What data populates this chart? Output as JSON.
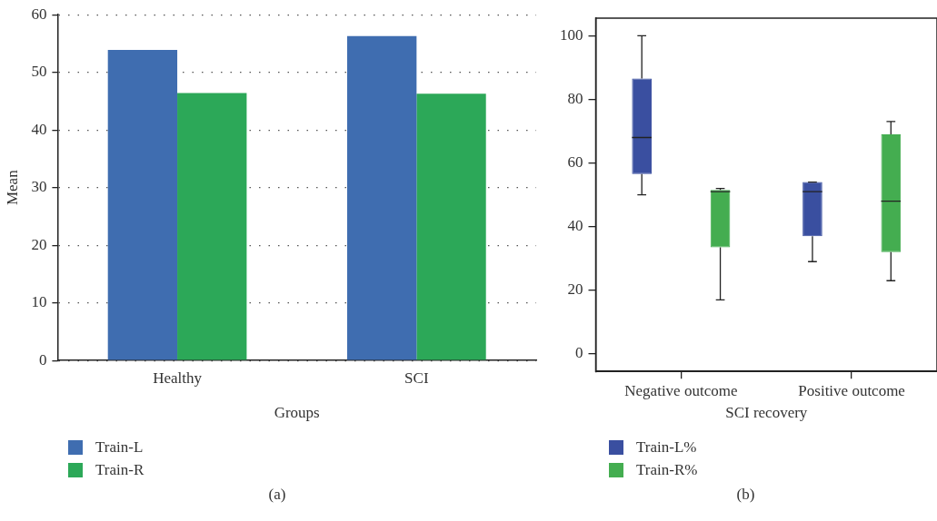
{
  "chart_data": [
    {
      "type": "bar",
      "xlabel": "Groups",
      "ylabel": "Mean",
      "categories": [
        "Healthy",
        "SCI"
      ],
      "series": [
        {
          "name": "Train-L",
          "color": "#3f6db0",
          "values": [
            53.9,
            56.3
          ]
        },
        {
          "name": "Train-R",
          "color": "#2ca858",
          "values": [
            46.4,
            46.3
          ]
        }
      ],
      "ylim": [
        0,
        60
      ],
      "yticks": [
        0,
        10,
        20,
        30,
        40,
        50,
        60
      ],
      "grid": "y",
      "legend": "bottom left",
      "annotations": [
        "(a)"
      ]
    },
    {
      "type": "box",
      "xlabel": "SCI recovery",
      "categories": [
        "Negative outcome",
        "Positive outcome"
      ],
      "series": [
        {
          "name": "Train-L%",
          "color": "#3a4fa0",
          "boxes": [
            {
              "low": 50,
              "q1": 56.5,
              "median": 68,
              "q3": 86.5,
              "high": 100
            },
            {
              "low": 29,
              "q1": 37,
              "median": 51,
              "q3": 54,
              "high": 54
            }
          ]
        },
        {
          "name": "Train-R%",
          "color": "#44ad50",
          "boxes": [
            {
              "low": 17,
              "q1": 33.5,
              "median": 51,
              "q3": 51.5,
              "high": 52
            },
            {
              "low": 23,
              "q1": 32,
              "median": 48,
              "q3": 69,
              "high": 73
            }
          ]
        }
      ],
      "ylim": [
        -5.5,
        105.5
      ],
      "yticks": [
        0,
        20,
        40,
        60,
        80,
        100
      ],
      "legend": "bottom left",
      "annotations": [
        "(b)"
      ]
    }
  ]
}
